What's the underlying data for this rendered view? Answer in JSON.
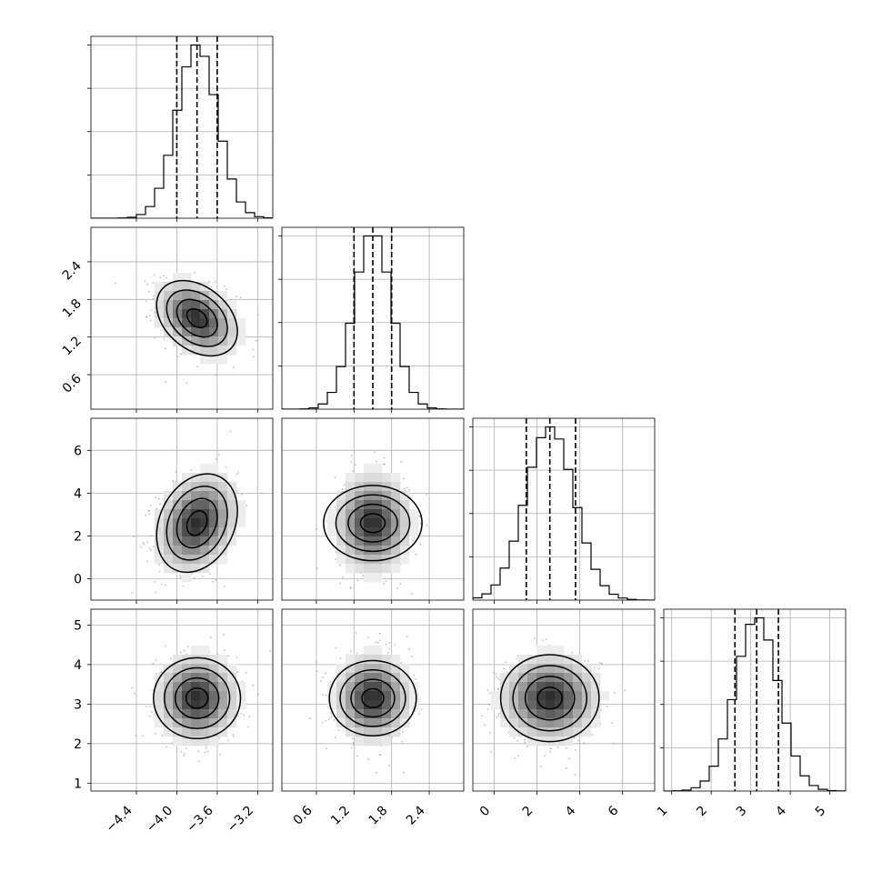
{
  "chart_data": {
    "type": "corner",
    "title": "",
    "parameters": [
      {
        "range": [
          -4.85,
          -3.05
        ],
        "ticks": [
          -4.4,
          -4.0,
          -3.6,
          -3.2
        ],
        "tick_labels": [
          "−4.4",
          "−4.0",
          "−3.6",
          "−3.2"
        ],
        "mean": -3.8,
        "std": 0.2,
        "quantiles": [
          -4.0,
          -3.8,
          -3.6
        ]
      },
      {
        "range": [
          0.05,
          2.95
        ],
        "ticks": [
          0.6,
          1.2,
          1.8,
          2.4
        ],
        "tick_labels": [
          "0.6",
          "1.2",
          "1.8",
          "2.4"
        ],
        "mean": 1.5,
        "std": 0.3,
        "quantiles": [
          1.2,
          1.5,
          1.8
        ]
      },
      {
        "range": [
          -1.0,
          7.5
        ],
        "ticks": [
          0,
          2,
          4,
          6
        ],
        "tick_labels": [
          "0",
          "2",
          "4",
          "6"
        ],
        "mean": 2.6,
        "std": 1.15,
        "quantiles": [
          1.5,
          2.6,
          3.8
        ]
      },
      {
        "range": [
          0.8,
          5.4
        ],
        "ticks": [
          1,
          2,
          3,
          4,
          5
        ],
        "tick_labels": [
          "1",
          "2",
          "3",
          "4",
          "5"
        ],
        "mean": 3.15,
        "std": 0.55,
        "quantiles": [
          2.6,
          3.15,
          3.7
        ]
      }
    ],
    "histogram_bins": 20,
    "grid": true,
    "contour_levels": [
      "0.5 sigma",
      "1 sigma",
      "1.5 sigma",
      "2 sigma"
    ]
  }
}
